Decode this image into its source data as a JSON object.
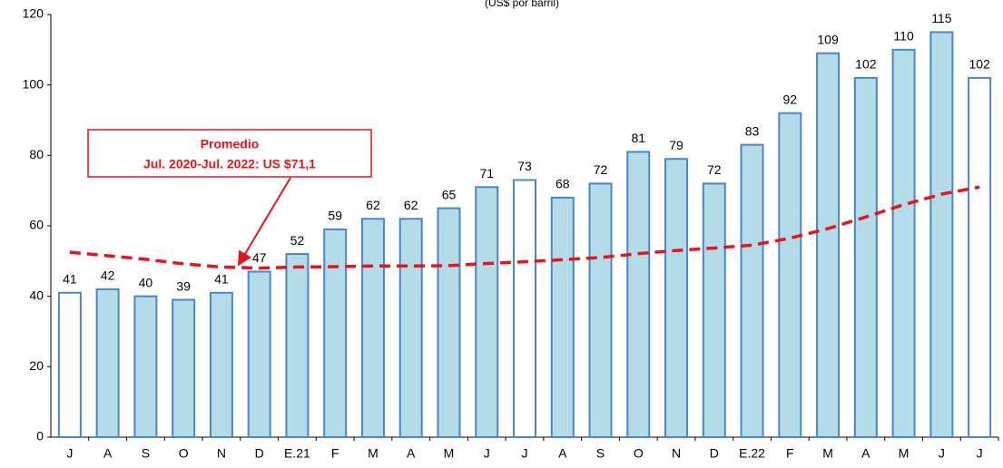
{
  "chart_data": {
    "type": "bar",
    "subtitle": "(US$ por barril)",
    "categories": [
      "J",
      "A",
      "S",
      "O",
      "N",
      "D",
      "E.21",
      "F",
      "M",
      "A",
      "M",
      "J",
      "J",
      "A",
      "S",
      "O",
      "N",
      "D",
      "E.22",
      "F",
      "M",
      "A",
      "M",
      "J",
      "J"
    ],
    "values": [
      41,
      42,
      40,
      39,
      41,
      47,
      52,
      59,
      62,
      62,
      65,
      71,
      73,
      68,
      72,
      81,
      79,
      72,
      83,
      92,
      109,
      102,
      110,
      115,
      102
    ],
    "colors": [
      "#ffffff",
      "#b4dce8",
      "#b4dce8",
      "#b4dce8",
      "#b4dce8",
      "#b4dce8",
      "#b4dce8",
      "#b4dce8",
      "#b4dce8",
      "#b4dce8",
      "#b4dce8",
      "#b4dce8",
      "#ffffff",
      "#b4dce8",
      "#b4dce8",
      "#b4dce8",
      "#b4dce8",
      "#b4dce8",
      "#b4dce8",
      "#b4dce8",
      "#b4dce8",
      "#b4dce8",
      "#b4dce8",
      "#b4dce8",
      "#ffffff"
    ],
    "edge_color": "#4a86c8",
    "line": {
      "color": "#e8141b",
      "values": [
        52.5,
        51.5,
        50.5,
        49.2,
        48.3,
        48,
        48.3,
        48.4,
        48.6,
        48.6,
        48.7,
        49.3,
        49.8,
        50.4,
        51,
        52.1,
        53,
        53.7,
        54.5,
        56.5,
        59.2,
        62.5,
        66,
        69,
        71
      ]
    },
    "annotation": [
      "Promedio",
      "Jul. 2020-Jul. 2022: US $71,1"
    ],
    "ylim": [
      0,
      120
    ],
    "yticks": [
      0,
      20,
      40,
      60,
      80,
      100,
      120
    ],
    "grid": false
  }
}
